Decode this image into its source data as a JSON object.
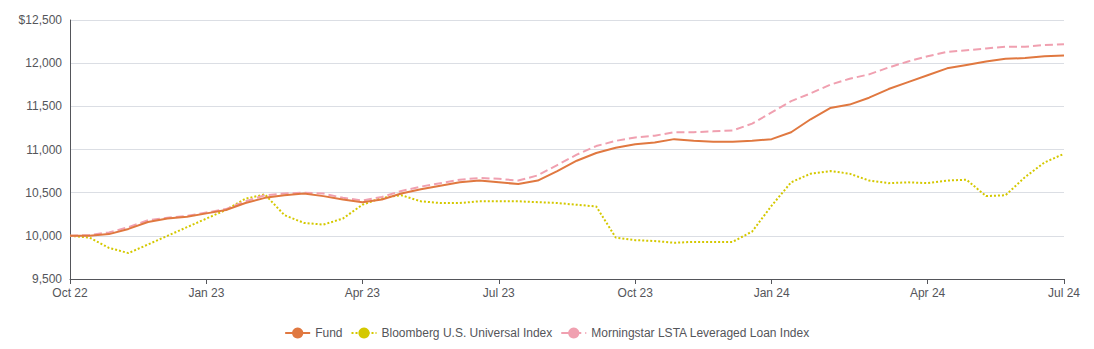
{
  "chart_data": {
    "type": "line",
    "categories": [
      "Oct 22",
      null,
      null,
      null,
      null,
      null,
      null,
      "Jan 23",
      null,
      null,
      null,
      null,
      null,
      null,
      null,
      "Apr 23",
      null,
      null,
      null,
      null,
      null,
      null,
      "Jul 23",
      null,
      null,
      null,
      null,
      null,
      null,
      "Oct 23",
      null,
      null,
      null,
      null,
      null,
      null,
      "Jan 24",
      null,
      null,
      null,
      null,
      null,
      null,
      null,
      "Apr 24",
      null,
      null,
      null,
      null,
      null,
      null,
      "Jul 24"
    ],
    "series": [
      {
        "name": "Fund",
        "color": "#E07840",
        "line_style": "solid",
        "values": [
          10000,
          10000,
          10020,
          10080,
          10160,
          10200,
          10220,
          10260,
          10300,
          10380,
          10440,
          10470,
          10490,
          10460,
          10420,
          10390,
          10420,
          10490,
          10540,
          10580,
          10620,
          10640,
          10620,
          10600,
          10640,
          10750,
          10870,
          10960,
          11020,
          11060,
          11080,
          11120,
          11100,
          11090,
          11090,
          11100,
          11120,
          11200,
          11350,
          11480,
          11520,
          11600,
          11700,
          11780,
          11860,
          11940,
          11980,
          12020,
          12050,
          12060,
          12080,
          12090
        ]
      },
      {
        "name": "Bloomberg U.S. Universal Index",
        "color": "#D4C800",
        "line_style": "dotted",
        "values": [
          10000,
          9980,
          9860,
          9800,
          9900,
          10000,
          10100,
          10200,
          10300,
          10430,
          10480,
          10240,
          10150,
          10130,
          10200,
          10360,
          10440,
          10470,
          10400,
          10380,
          10380,
          10400,
          10400,
          10400,
          10390,
          10380,
          10360,
          10340,
          9980,
          9950,
          9940,
          9920,
          9930,
          9930,
          9930,
          10050,
          10350,
          10620,
          10720,
          10750,
          10720,
          10640,
          10610,
          10620,
          10610,
          10640,
          10650,
          10460,
          10470,
          10680,
          10850,
          10950
        ]
      },
      {
        "name": "Morningstar LSTA Leveraged Loan Index",
        "color": "#F0A0B0",
        "line_style": "dashed",
        "values": [
          10000,
          10010,
          10040,
          10100,
          10180,
          10210,
          10230,
          10270,
          10310,
          10400,
          10470,
          10490,
          10500,
          10490,
          10440,
          10410,
          10450,
          10520,
          10570,
          10610,
          10650,
          10670,
          10660,
          10640,
          10700,
          10820,
          10940,
          11040,
          11100,
          11140,
          11160,
          11200,
          11200,
          11210,
          11220,
          11300,
          11430,
          11560,
          11650,
          11750,
          11820,
          11870,
          11950,
          12020,
          12080,
          12130,
          12150,
          12170,
          12190,
          12190,
          12210,
          12220
        ]
      }
    ],
    "ylim": [
      9500,
      12500
    ],
    "yticks": [
      {
        "value": 9500,
        "label": "9,500"
      },
      {
        "value": 10000,
        "label": "10,000"
      },
      {
        "value": 10500,
        "label": "10,500"
      },
      {
        "value": 11000,
        "label": "11,000"
      },
      {
        "value": 11500,
        "label": "11,500"
      },
      {
        "value": 12000,
        "label": "12,000"
      },
      {
        "value": 12500,
        "label": "$12,500"
      }
    ],
    "grid": true,
    "legend": "bottom"
  }
}
